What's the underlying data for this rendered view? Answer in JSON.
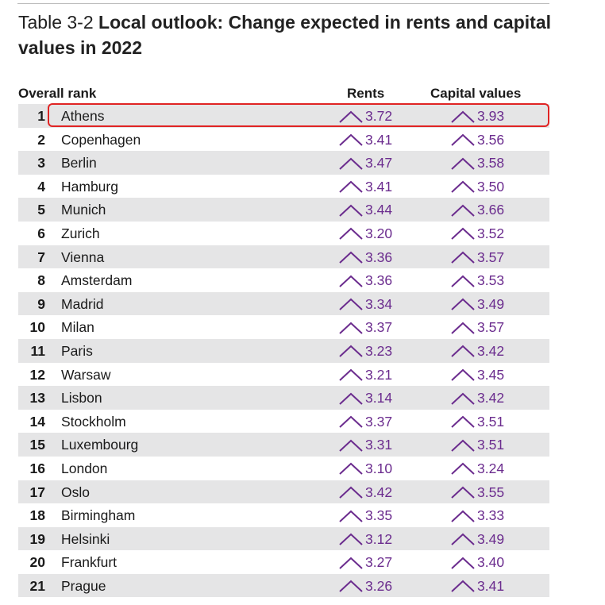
{
  "title": {
    "prefix": "Table 3-2",
    "text": "Local outlook: Change expected in rents and capital values in 2022"
  },
  "columns": {
    "rank": "Overall rank",
    "rents": "Rents",
    "capital": "Capital values"
  },
  "colors": {
    "value": "#6b2c8e",
    "shade": "#e5e5e6",
    "highlight": "#e02424"
  },
  "arrow_icon": "up-chevron-icon",
  "highlighted_row": "Athens",
  "rows": [
    {
      "rank": "1",
      "city": "Athens",
      "rents": "3.72",
      "capital": "3.93"
    },
    {
      "rank": "2",
      "city": "Copenhagen",
      "rents": "3.41",
      "capital": "3.56"
    },
    {
      "rank": "3",
      "city": "Berlin",
      "rents": "3.47",
      "capital": "3.58"
    },
    {
      "rank": "4",
      "city": "Hamburg",
      "rents": "3.41",
      "capital": "3.50"
    },
    {
      "rank": "5",
      "city": "Munich",
      "rents": "3.44",
      "capital": "3.66"
    },
    {
      "rank": "6",
      "city": "Zurich",
      "rents": "3.20",
      "capital": "3.52"
    },
    {
      "rank": "7",
      "city": "Vienna",
      "rents": "3.36",
      "capital": "3.57"
    },
    {
      "rank": "8",
      "city": "Amsterdam",
      "rents": "3.36",
      "capital": "3.53"
    },
    {
      "rank": "9",
      "city": "Madrid",
      "rents": "3.34",
      "capital": "3.49"
    },
    {
      "rank": "10",
      "city": "Milan",
      "rents": "3.37",
      "capital": "3.57"
    },
    {
      "rank": "11",
      "city": "Paris",
      "rents": "3.23",
      "capital": "3.42"
    },
    {
      "rank": "12",
      "city": "Warsaw",
      "rents": "3.21",
      "capital": "3.45"
    },
    {
      "rank": "13",
      "city": "Lisbon",
      "rents": "3.14",
      "capital": "3.42"
    },
    {
      "rank": "14",
      "city": "Stockholm",
      "rents": "3.37",
      "capital": "3.51"
    },
    {
      "rank": "15",
      "city": "Luxembourg",
      "rents": "3.31",
      "capital": "3.51"
    },
    {
      "rank": "16",
      "city": "London",
      "rents": "3.10",
      "capital": "3.24"
    },
    {
      "rank": "17",
      "city": "Oslo",
      "rents": "3.42",
      "capital": "3.55"
    },
    {
      "rank": "18",
      "city": "Birmingham",
      "rents": "3.35",
      "capital": "3.33"
    },
    {
      "rank": "19",
      "city": "Helsinki",
      "rents": "3.12",
      "capital": "3.49"
    },
    {
      "rank": "20",
      "city": "Frankfurt",
      "rents": "3.27",
      "capital": "3.40"
    },
    {
      "rank": "21",
      "city": "Prague",
      "rents": "3.26",
      "capital": "3.41"
    }
  ]
}
